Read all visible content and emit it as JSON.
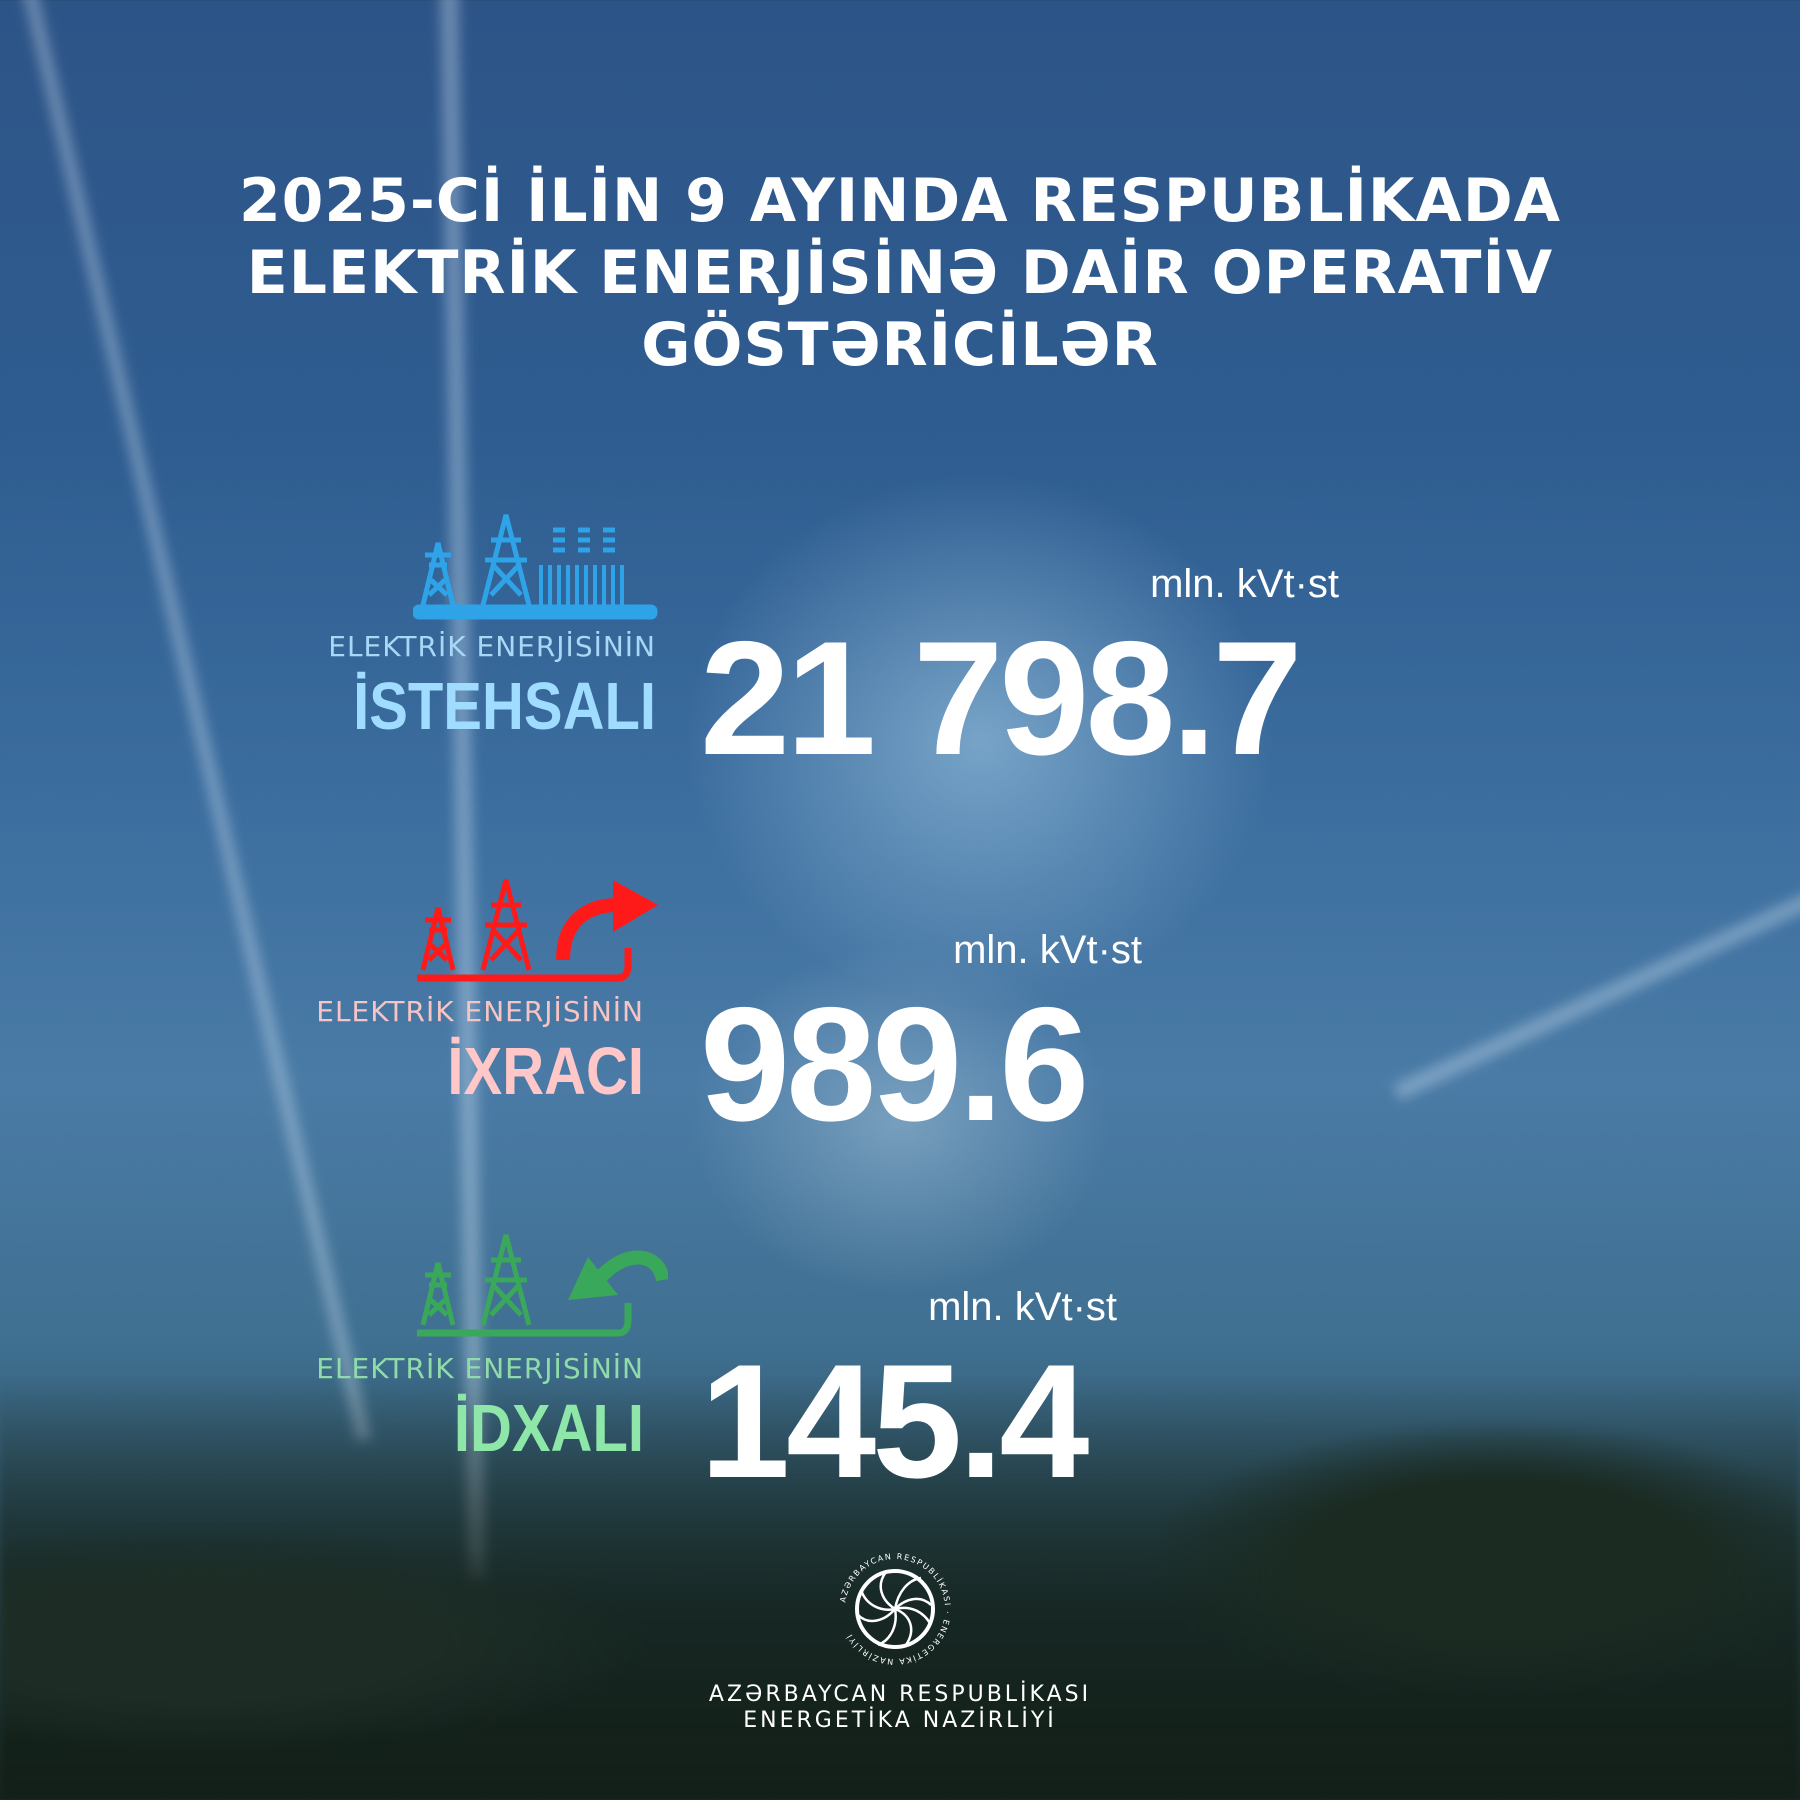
{
  "title": {
    "line1": "2025-Cİ İLİN 9 AYINDA RESPUBLİKADA",
    "line2": "ELEKTRİK ENERJİSİNƏ DAİR OPERATİV",
    "line3": "GÖSTƏRİCİLƏR"
  },
  "indicators": [
    {
      "label": "ELEKTRİK ENERJİSİNİN",
      "title": "İSTEHSALI",
      "value": "21 798.7",
      "unit": "mln. kVt·st",
      "icon": "power-tower-plant-icon",
      "color": "#2ea3e8",
      "title_color": "#9fdcff"
    },
    {
      "label": "ELEKTRİK ENERJİSİNİN",
      "title": "İXRACI",
      "value": "989.6",
      "unit": "mln. kVt·st",
      "icon": "power-tower-export-icon",
      "color": "#ff1a1a",
      "title_color": "#ffc7c7"
    },
    {
      "label": "ELEKTRİK ENERJİSİNİN",
      "title": "İDXALI",
      "value": "145.4",
      "unit": "mln. kVt·st",
      "icon": "power-tower-import-icon",
      "color": "#3aa85a",
      "title_color": "#8ee6a8"
    }
  ],
  "logo": {
    "ring_text": "AZƏRBAYCAN RESPUBLİKASI ENERGETİKA NAZİRLİYİ"
  },
  "footer": {
    "line1": "AZƏRBAYCAN RESPUBLİKASI",
    "line2": "ENERGETİKA NAZİRLİYİ"
  }
}
